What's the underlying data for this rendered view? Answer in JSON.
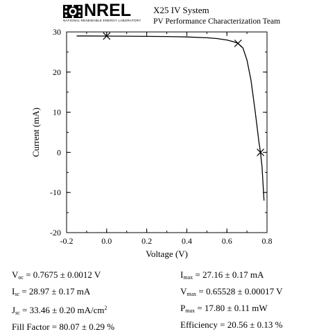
{
  "header": {
    "logo_text": "NREL",
    "logo_subtext": "NATIONAL RENEWABLE ENERGY LABORATORY",
    "title": "X25 IV System",
    "subtitle": "PV Performance Characterization Team"
  },
  "chart_data": {
    "type": "line",
    "xlabel": "Voltage (V)",
    "ylabel": "Current (mA)",
    "xlim": [
      -0.2,
      0.8
    ],
    "ylim": [
      -20,
      30
    ],
    "xticks": [
      -0.2,
      0.0,
      0.2,
      0.4,
      0.6,
      0.8
    ],
    "xtick_labels": [
      "-0.2",
      "0.0",
      "0.2",
      "0.4",
      "0.6",
      "0.8"
    ],
    "yticks": [
      -20,
      -10,
      0,
      10,
      20,
      30
    ],
    "ytick_labels": [
      "-20",
      "-10",
      "0",
      "10",
      "20",
      "30"
    ],
    "grid": false,
    "series": [
      {
        "x": [
          -0.15,
          -0.1,
          0.0,
          0.1,
          0.2,
          0.3,
          0.4,
          0.5,
          0.55,
          0.6,
          0.63,
          0.65528,
          0.68,
          0.7,
          0.72,
          0.74,
          0.75,
          0.76,
          0.7675,
          0.775,
          0.785
        ],
        "y": [
          29.0,
          29.0,
          28.97,
          28.95,
          28.9,
          28.85,
          28.75,
          28.55,
          28.35,
          28.0,
          27.6,
          27.16,
          26.0,
          23.0,
          18.0,
          10.5,
          6.5,
          2.5,
          0.0,
          -3.5,
          -12.0
        ],
        "color": "#000000"
      }
    ],
    "markers": [
      {
        "x": 0.0,
        "y": 28.97
      },
      {
        "x": 0.65528,
        "y": 27.16
      },
      {
        "x": 0.7675,
        "y": 0.0
      }
    ]
  },
  "stats": {
    "voc": {
      "sym": "V",
      "sub": "oc",
      "value": " = 0.7675 ± 0.0012 V"
    },
    "isc": {
      "sym": "I",
      "sub": "sc",
      "value": " = 28.97 ± 0.17 mA"
    },
    "jsc": {
      "sym": "J",
      "sub": "sc",
      "value": " = 33.46 ± 0.20 mA/cm",
      "sup": "2"
    },
    "ff": {
      "value": "Fill Factor = 80.07 ± 0.29 %"
    },
    "imax": {
      "sym": "I",
      "sub": "max",
      "value": " = 27.16 ± 0.17 mA"
    },
    "vmax": {
      "sym": "V",
      "sub": "max",
      "value": " = 0.65528 ± 0.00017 V"
    },
    "pmax": {
      "sym": "P",
      "sub": "max",
      "value": " = 17.80 ± 0.11 mW"
    },
    "eff": {
      "value": "Efficiency = 20.56 ± 0.13 %"
    }
  }
}
